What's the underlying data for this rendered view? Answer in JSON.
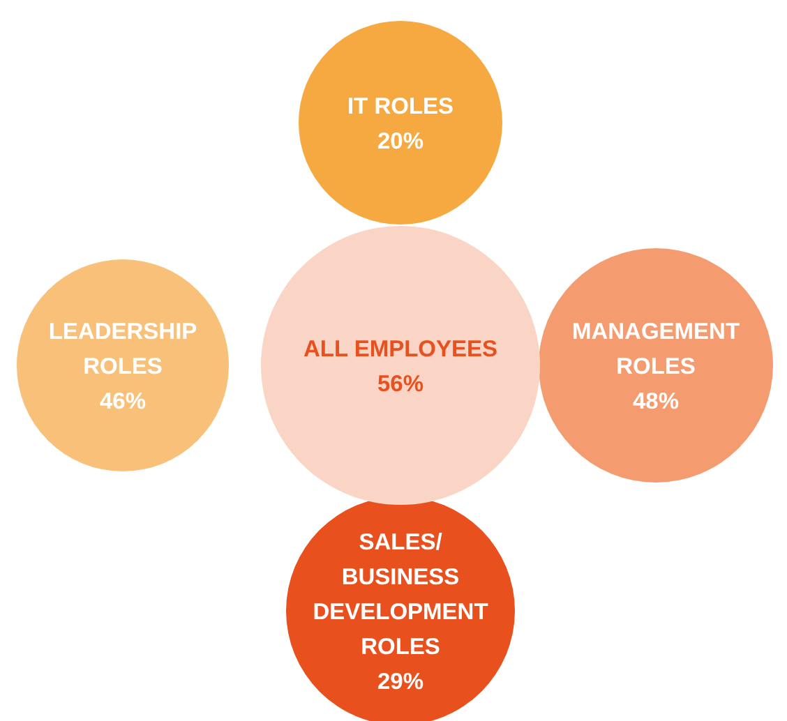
{
  "chart_data": {
    "type": "other",
    "categories": [
      "ALL EMPLOYEES",
      "IT ROLES",
      "LEADERSHIP ROLES",
      "MANAGEMENT ROLES",
      "SALES/ BUSINESS DEVELOPMENT ROLES"
    ],
    "values": [
      56,
      20,
      46,
      48,
      29
    ],
    "value_labels": [
      "56%",
      "20%",
      "46%",
      "48%",
      "29%"
    ],
    "colors": [
      "#fad5c5",
      "#f5a940",
      "#f9c07a",
      "#f49c70",
      "#e8501e"
    ]
  }
}
